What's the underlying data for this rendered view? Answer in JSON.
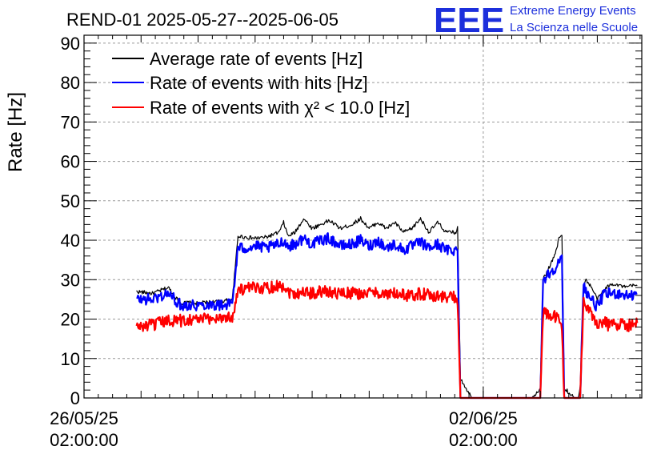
{
  "chart_data": {
    "type": "line",
    "title": "REND-01 2025-05-27--2025-06-05",
    "ylabel": "Rate [Hz]",
    "xlabel": "",
    "ylim": [
      0,
      92
    ],
    "xlim_days": [
      0,
      9.78
    ],
    "yticks": [
      0,
      10,
      20,
      30,
      40,
      50,
      60,
      70,
      80,
      90
    ],
    "xticks": [
      {
        "day": 0,
        "date": "26/05/25",
        "time": "02:00:00"
      },
      {
        "day": 7,
        "date": "02/06/25",
        "time": "02:00:00"
      }
    ],
    "grid": true,
    "legend_position": "top-left",
    "logo": {
      "letters": "EEE",
      "line1": "Extreme Energy Events",
      "line2": "La Scienza nelle Scuole"
    },
    "series": [
      {
        "name": "Average rate of events [Hz]",
        "color": "#000000",
        "x": [
          0.92,
          1.2,
          1.48,
          1.66,
          1.7,
          1.82,
          1.98,
          2.2,
          2.4,
          2.6,
          2.7,
          2.74,
          2.82,
          3.0,
          3.2,
          3.42,
          3.5,
          3.58,
          3.7,
          3.85,
          4.0,
          4.15,
          4.3,
          4.5,
          4.7,
          4.85,
          5.0,
          5.15,
          5.3,
          5.45,
          5.6,
          5.75,
          5.9,
          6.05,
          6.2,
          6.35,
          6.52,
          6.55,
          6.6,
          6.8,
          7.0,
          7.2,
          7.4,
          7.6,
          7.85,
          8.0,
          8.05,
          8.25,
          8.34,
          8.38,
          8.42,
          8.6,
          8.66,
          8.7,
          8.76,
          8.8,
          8.9,
          9.0,
          9.1,
          9.2,
          9.3,
          9.4,
          9.5,
          9.6,
          9.7
        ],
        "y": [
          27,
          26.5,
          28,
          24.5,
          24,
          24.2,
          24,
          24.3,
          24.5,
          25,
          41,
          41,
          40.8,
          40.5,
          40.8,
          42,
          44.5,
          41,
          42,
          45.5,
          43,
          44,
          45,
          43,
          44,
          45.5,
          43,
          44.5,
          43,
          44.5,
          42,
          43,
          45.5,
          42,
          44.5,
          42,
          42,
          43,
          5,
          0,
          0,
          0,
          0,
          0,
          0,
          2.5,
          30,
          36,
          41,
          41,
          2.5,
          0,
          0,
          2.5,
          29,
          30,
          28,
          25,
          27,
          28.5,
          29,
          28.5,
          28,
          28.5,
          28.5
        ]
      },
      {
        "name": "Rate of events with hits [Hz]",
        "color": "#0000ff",
        "x": [
          0.92,
          1.2,
          1.48,
          1.66,
          1.7,
          1.82,
          1.98,
          2.2,
          2.4,
          2.6,
          2.7,
          2.74,
          2.82,
          3.0,
          3.2,
          3.42,
          3.5,
          3.58,
          3.7,
          3.85,
          4.0,
          4.15,
          4.3,
          4.5,
          4.7,
          4.85,
          5.0,
          5.15,
          5.3,
          5.45,
          5.6,
          5.75,
          5.9,
          6.05,
          6.2,
          6.35,
          6.52,
          6.55,
          6.6,
          6.8,
          7.0,
          7.2,
          7.4,
          7.6,
          7.85,
          8.0,
          8.05,
          8.25,
          8.34,
          8.38,
          8.42,
          8.6,
          8.66,
          8.7,
          8.76,
          8.8,
          8.9,
          9.0,
          9.1,
          9.2,
          9.3,
          9.4,
          9.5,
          9.6,
          9.7
        ],
        "y": [
          25,
          25,
          26.5,
          24,
          23.5,
          23.7,
          23.5,
          23.8,
          23.5,
          24,
          38,
          38,
          38,
          38.5,
          38,
          39,
          40,
          38.5,
          39,
          40.5,
          39,
          40,
          40.5,
          38.5,
          39,
          40,
          38.5,
          40,
          38,
          39,
          37.5,
          38.5,
          39.5,
          38,
          39,
          37.5,
          37.5,
          37,
          0,
          0,
          0,
          0,
          0,
          0,
          0,
          0,
          30,
          33,
          34.5,
          35,
          0,
          0,
          0,
          0,
          30,
          27,
          25,
          23,
          26,
          26.5,
          26.5,
          26.5,
          26,
          26,
          26.5
        ]
      },
      {
        "name": "Rate of events with χ² < 10.0 [Hz]",
        "color": "#ff0000",
        "x": [
          0.92,
          1.2,
          1.48,
          1.66,
          1.7,
          1.82,
          1.98,
          2.2,
          2.4,
          2.6,
          2.7,
          2.74,
          2.82,
          3.0,
          3.2,
          3.42,
          3.5,
          3.58,
          3.7,
          3.85,
          4.0,
          4.15,
          4.3,
          4.5,
          4.7,
          4.85,
          5.0,
          5.15,
          5.3,
          5.45,
          5.6,
          5.75,
          5.9,
          6.05,
          6.2,
          6.35,
          6.52,
          6.55,
          6.6,
          6.8,
          7.0,
          7.2,
          7.4,
          7.6,
          7.85,
          8.0,
          8.05,
          8.25,
          8.34,
          8.38,
          8.42,
          8.6,
          8.66,
          8.7,
          8.76,
          8.8,
          8.9,
          9.0,
          9.1,
          9.2,
          9.3,
          9.4,
          9.5,
          9.6,
          9.7
        ],
        "y": [
          18,
          18.5,
          19.5,
          20,
          19.5,
          20,
          20,
          20,
          20.5,
          20.5,
          27.5,
          27.5,
          27.5,
          28,
          28,
          28.5,
          28.5,
          27,
          26.5,
          27,
          26.5,
          27,
          27,
          26.5,
          26.5,
          26.5,
          26.5,
          27,
          26,
          26.5,
          26,
          26,
          26.5,
          26,
          26,
          25.5,
          25.5,
          25,
          0,
          0,
          0,
          0,
          0,
          0,
          0,
          0,
          21.5,
          20.5,
          19.5,
          18.5,
          0,
          0,
          0,
          0,
          25,
          23,
          21,
          19,
          19.5,
          18.5,
          18.5,
          19,
          18.5,
          18.5,
          19
        ]
      }
    ]
  }
}
